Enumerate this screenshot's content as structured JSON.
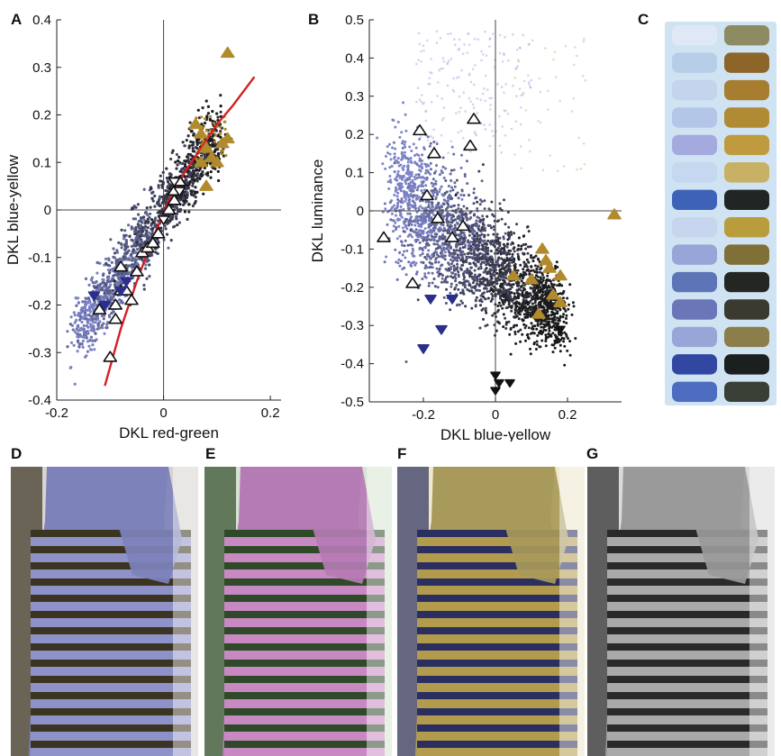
{
  "figure": {
    "panel_letters": [
      "A",
      "B",
      "C",
      "D",
      "E",
      "F",
      "G"
    ]
  },
  "colors": {
    "cloud_blue": "#7d84c8",
    "cloud_dark": "#1b1a1a",
    "gold": "#b08a2c",
    "blue_marker": "#2a2f8c",
    "black_marker": "#111111",
    "fit_line": "#d41f24"
  },
  "chart_data": [
    {
      "panel": "A",
      "type": "scatter",
      "xlabel": "DKL red-green",
      "ylabel": "DKL blue-yellow",
      "xlim": [
        -0.2,
        0.22
      ],
      "ylim": [
        -0.4,
        0.4
      ],
      "xticks": [
        -0.2,
        0,
        0.2
      ],
      "xtick_labels": [
        "-0.2",
        "0",
        "0.2"
      ],
      "yticks": [
        -0.4,
        -0.3,
        -0.2,
        -0.1,
        0,
        0.1,
        0.2,
        0.3,
        0.4
      ],
      "ytick_labels": [
        "-0.4",
        "-0.3",
        "-0.2",
        "-0.1",
        "0",
        "0.1",
        "0.2",
        "0.3",
        "0.4"
      ],
      "zero_lines": true,
      "series": [
        {
          "marker": "open-triangle-up",
          "x": [
            -0.1,
            -0.09,
            -0.08,
            -0.08,
            -0.07,
            -0.06,
            -0.05,
            -0.04,
            -0.03,
            -0.02,
            -0.01,
            0.01,
            0.02,
            0.02,
            0.03,
            -0.12,
            -0.09
          ],
          "y": [
            -0.31,
            -0.23,
            -0.17,
            -0.12,
            -0.17,
            -0.19,
            -0.13,
            -0.09,
            -0.08,
            -0.07,
            -0.05,
            0.0,
            0.02,
            0.04,
            0.06,
            -0.21,
            -0.2
          ]
        },
        {
          "marker": "gold-triangle-up",
          "x": [
            0.06,
            0.07,
            0.08,
            0.09,
            0.1,
            0.11,
            0.12,
            0.12,
            0.08,
            0.07
          ],
          "y": [
            0.18,
            0.16,
            0.13,
            0.11,
            0.1,
            0.14,
            0.15,
            0.33,
            0.05,
            0.1
          ]
        },
        {
          "marker": "blue-triangle-down",
          "x": [
            -0.13,
            -0.11,
            -0.08,
            -0.07
          ],
          "y": [
            -0.18,
            -0.2,
            -0.17,
            -0.15
          ]
        },
        {
          "marker": "white-triangle-down",
          "x": [
            0.0,
            0.02,
            0.03
          ],
          "y": [
            -0.02,
            0.06,
            0.04
          ]
        }
      ],
      "fit_line": {
        "x": [
          -0.11,
          -0.08,
          -0.05,
          -0.02,
          0.01,
          0.04,
          0.07,
          0.1,
          0.13,
          0.17
        ],
        "y": [
          -0.37,
          -0.25,
          -0.15,
          -0.06,
          0.02,
          0.08,
          0.13,
          0.18,
          0.22,
          0.28
        ]
      },
      "cloud": {
        "description_free": true,
        "slope_center": [
          [
            -0.15,
            -0.24
          ],
          [
            0.1,
            0.18
          ]
        ]
      }
    },
    {
      "panel": "B",
      "type": "scatter",
      "xlabel": "DKL blue-yellow",
      "ylabel": "DKL luminance",
      "xlim": [
        -0.35,
        0.35
      ],
      "ylim": [
        -0.5,
        0.5
      ],
      "xticks": [
        -0.2,
        0,
        0.2
      ],
      "xtick_labels": [
        "-0.2",
        "0",
        "0.2"
      ],
      "yticks": [
        -0.5,
        -0.4,
        -0.3,
        -0.2,
        -0.1,
        0,
        0.1,
        0.2,
        0.3,
        0.4,
        0.5
      ],
      "ytick_labels": [
        "-0.5",
        "-0.4",
        "-0.3",
        "-0.2",
        "-0.1",
        "0",
        "0.1",
        "0.2",
        "0.3",
        "0.4",
        "0.5"
      ],
      "zero_lines": true,
      "series": [
        {
          "marker": "open-triangle-up",
          "x": [
            -0.31,
            -0.23,
            -0.21,
            -0.19,
            -0.17,
            -0.16,
            -0.12,
            -0.09,
            -0.07,
            -0.06
          ],
          "y": [
            -0.07,
            -0.19,
            0.21,
            0.04,
            0.15,
            -0.02,
            -0.07,
            -0.04,
            0.17,
            0.24
          ]
        },
        {
          "marker": "gold-triangle-up",
          "x": [
            0.33,
            0.05,
            0.1,
            0.13,
            0.14,
            0.15,
            0.16,
            0.18,
            0.18,
            0.12
          ],
          "y": [
            -0.01,
            -0.17,
            -0.18,
            -0.1,
            -0.13,
            -0.15,
            -0.22,
            -0.17,
            -0.24,
            -0.27
          ]
        },
        {
          "marker": "blue-triangle-down",
          "x": [
            -0.2,
            -0.18,
            -0.15,
            -0.12
          ],
          "y": [
            -0.36,
            -0.23,
            -0.31,
            -0.23
          ]
        },
        {
          "marker": "black-triangle-down",
          "x": [
            0.0,
            0.01,
            0.04,
            0.18,
            0.0
          ],
          "y": [
            -0.43,
            -0.45,
            -0.45,
            -0.31,
            -0.47
          ]
        }
      ]
    }
  ],
  "swatches": {
    "left": [
      "#dfe9f5",
      "#b8cde8",
      "#c4d4ec",
      "#b3c6e8",
      "#a4a9de",
      "#c6d7f0",
      "#3f62b9",
      "#c7d5ee",
      "#97a6d8",
      "#5c75b6",
      "#6b76b9",
      "#97a6d6",
      "#3247a1",
      "#4c6dc0"
    ],
    "right": [
      "#8d8b62",
      "#8e6528",
      "#a77d2f",
      "#b18a34",
      "#c09a3f",
      "#c8b064",
      "#212524",
      "#b99d3c",
      "#7f7038",
      "#232622",
      "#3a3a30",
      "#8b7e4a",
      "#1c1f1f",
      "#3a3f36"
    ]
  },
  "photos": [
    {
      "id": "D",
      "stripe_light": "#8e92c8",
      "stripe_dark": "#3b3421",
      "body": "#7e82bb",
      "bg": "#d8d4cf"
    },
    {
      "id": "E",
      "stripe_light": "#c889c2",
      "stripe_dark": "#2f4a28",
      "body": "#b57bb4",
      "bg": "#d7e3d2"
    },
    {
      "id": "F",
      "stripe_light": "#b39b4d",
      "stripe_dark": "#2b2f60",
      "body": "#a89a5a",
      "bg": "#efe8cc"
    },
    {
      "id": "G",
      "stripe_light": "#a9a9a9",
      "stripe_dark": "#2a2a2a",
      "body": "#9a9a9a",
      "bg": "#dadada"
    }
  ]
}
